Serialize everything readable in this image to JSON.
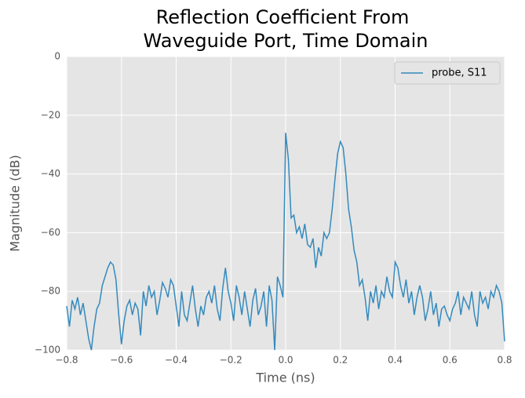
{
  "chart_data": {
    "type": "line",
    "title": [
      "Reflection Coefficient From",
      "Waveguide Port, Time Domain"
    ],
    "x_label": "Time (ns)",
    "y_label": "Magnitude (dB)",
    "xlim": [
      -0.8,
      0.8
    ],
    "ylim": [
      -100,
      0
    ],
    "xticks": [
      {
        "value": -0.8,
        "label": "−0.8"
      },
      {
        "value": -0.6,
        "label": "−0.6"
      },
      {
        "value": -0.4,
        "label": "−0.4"
      },
      {
        "value": -0.2,
        "label": "−0.2"
      },
      {
        "value": 0,
        "label": "0.0"
      },
      0.2,
      0.4,
      0.6,
      0.8
    ],
    "yticks": [
      {
        "value": -100,
        "label": "−100"
      },
      {
        "value": -80,
        "label": "−80"
      },
      {
        "value": -60,
        "label": "−60"
      },
      {
        "value": -40,
        "label": "−40"
      },
      {
        "value": -20,
        "label": "−20"
      },
      0
    ],
    "grid": true,
    "legend": "upper right",
    "x": [
      -0.8,
      -0.79,
      -0.78,
      -0.77,
      -0.76,
      -0.75,
      -0.74,
      -0.73,
      -0.72,
      -0.71,
      -0.7,
      -0.69,
      -0.68,
      -0.67,
      -0.66,
      -0.65,
      -0.64,
      -0.63,
      -0.62,
      -0.61,
      -0.6,
      -0.59,
      -0.58,
      -0.57,
      -0.56,
      -0.55,
      -0.54,
      -0.53,
      -0.52,
      -0.51,
      -0.5,
      -0.49,
      -0.48,
      -0.47,
      -0.46,
      -0.45,
      -0.44,
      -0.43,
      -0.42,
      -0.41,
      -0.4,
      -0.39,
      -0.38,
      -0.37,
      -0.36,
      -0.35,
      -0.34,
      -0.33,
      -0.32,
      -0.31,
      -0.3,
      -0.29,
      -0.28,
      -0.27,
      -0.26,
      -0.25,
      -0.24,
      -0.23,
      -0.22,
      -0.21,
      -0.2,
      -0.19,
      -0.18,
      -0.17,
      -0.16,
      -0.15,
      -0.14,
      -0.13,
      -0.12,
      -0.11,
      -0.1,
      -0.09,
      -0.08,
      -0.07,
      -0.06,
      -0.05,
      -0.04,
      -0.03,
      -0.02,
      -0.01,
      0,
      0.01,
      0.02,
      0.03,
      0.04,
      0.05,
      0.06,
      0.07,
      0.08,
      0.09,
      0.1,
      0.11,
      0.12,
      0.13,
      0.14,
      0.15,
      0.16,
      0.17,
      0.18,
      0.19,
      0.2,
      0.21,
      0.22,
      0.23,
      0.24,
      0.25,
      0.26,
      0.27,
      0.28,
      0.29,
      0.3,
      0.31,
      0.32,
      0.33,
      0.34,
      0.35,
      0.36,
      0.37,
      0.38,
      0.39,
      0.4,
      0.41,
      0.42,
      0.43,
      0.44,
      0.45,
      0.46,
      0.47,
      0.48,
      0.49,
      0.5,
      0.51,
      0.52,
      0.53,
      0.54,
      0.55,
      0.56,
      0.57,
      0.58,
      0.59,
      0.6,
      0.61,
      0.62,
      0.63,
      0.64,
      0.65,
      0.66,
      0.67,
      0.68,
      0.69,
      0.7,
      0.71,
      0.72,
      0.73,
      0.74,
      0.75,
      0.76,
      0.77,
      0.78,
      0.79,
      0.8
    ],
    "series": [
      {
        "name": "probe, S11",
        "color": "#348abd",
        "values": [
          -85,
          -92,
          -83,
          -86,
          -82,
          -88,
          -84,
          -90,
          -96,
          -100,
          -92,
          -86,
          -84,
          -78,
          -75,
          -72,
          -70,
          -71,
          -76,
          -88,
          -98,
          -90,
          -85,
          -83,
          -88,
          -84,
          -86,
          -95,
          -80,
          -85,
          -78,
          -82,
          -80,
          -88,
          -83,
          -77,
          -79,
          -82,
          -76,
          -78,
          -85,
          -92,
          -80,
          -88,
          -90,
          -84,
          -78,
          -86,
          -92,
          -85,
          -88,
          -82,
          -80,
          -84,
          -78,
          -86,
          -90,
          -79,
          -72,
          -80,
          -84,
          -90,
          -78,
          -82,
          -88,
          -80,
          -86,
          -92,
          -83,
          -79,
          -88,
          -85,
          -80,
          -92,
          -78,
          -83,
          -100,
          -75,
          -78,
          -82,
          -26,
          -35,
          -55,
          -54,
          -60,
          -58,
          -62,
          -57,
          -64,
          -65,
          -62,
          -72,
          -65,
          -68,
          -60,
          -62,
          -60,
          -52,
          -42,
          -33,
          -29,
          -31,
          -40,
          -52,
          -58,
          -66,
          -70,
          -78,
          -76,
          -82,
          -90,
          -80,
          -84,
          -78,
          -86,
          -80,
          -82,
          -75,
          -80,
          -82,
          -70,
          -72,
          -78,
          -82,
          -76,
          -84,
          -80,
          -88,
          -82,
          -78,
          -82,
          -90,
          -86,
          -80,
          -88,
          -84,
          -92,
          -86,
          -85,
          -88,
          -90,
          -86,
          -84,
          -80,
          -88,
          -82,
          -84,
          -86,
          -80,
          -88,
          -92,
          -80,
          -84,
          -82,
          -86,
          -80,
          -82,
          -78,
          -80,
          -84,
          -97
        ]
      }
    ]
  }
}
